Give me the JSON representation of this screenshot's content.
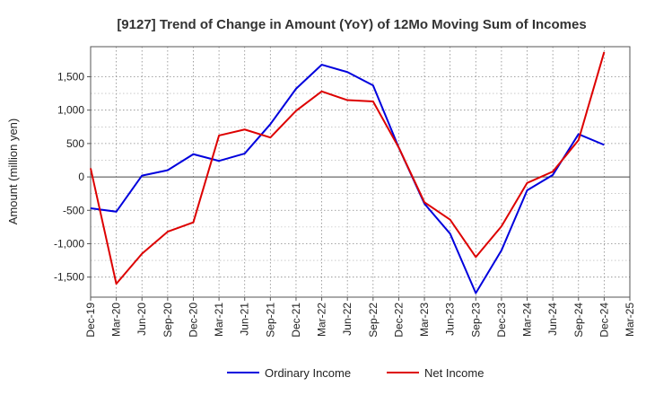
{
  "chart_data": {
    "type": "line",
    "title": "[9127]  Trend of Change in Amount (YoY) of 12Mo Moving Sum of Incomes",
    "xlabel": "",
    "ylabel": "Amount (million yen)",
    "ylim": [
      -1800,
      1950
    ],
    "yticks": [
      -1500,
      -1000,
      -500,
      0,
      500,
      1000,
      1500
    ],
    "ytick_labels": [
      "-1,500",
      "-1,000",
      "-500",
      "0",
      "500",
      "1,000",
      "1,500"
    ],
    "x": [
      "Dec-19",
      "Mar-20",
      "Jun-20",
      "Sep-20",
      "Dec-20",
      "Mar-21",
      "Jun-21",
      "Sep-21",
      "Dec-21",
      "Mar-22",
      "Jun-22",
      "Sep-22",
      "Dec-22",
      "Mar-23",
      "Jun-23",
      "Sep-23",
      "Dec-23",
      "Mar-24",
      "Jun-24",
      "Sep-24",
      "Dec-24",
      "Mar-25"
    ],
    "grid": true,
    "legend_position": "bottom",
    "series": [
      {
        "name": "Ordinary Income",
        "color": "#0000dd",
        "values": [
          -470,
          -520,
          20,
          100,
          340,
          240,
          350,
          790,
          1320,
          1680,
          1570,
          1370,
          440,
          -400,
          -850,
          -1740,
          -1100,
          -200,
          30,
          640,
          480,
          null
        ]
      },
      {
        "name": "Net Income",
        "color": "#dd0000",
        "values": [
          130,
          -1600,
          -1150,
          -820,
          -680,
          620,
          710,
          590,
          990,
          1280,
          1150,
          1130,
          440,
          -380,
          -640,
          -1200,
          -740,
          -90,
          80,
          550,
          1870,
          null
        ]
      }
    ]
  }
}
